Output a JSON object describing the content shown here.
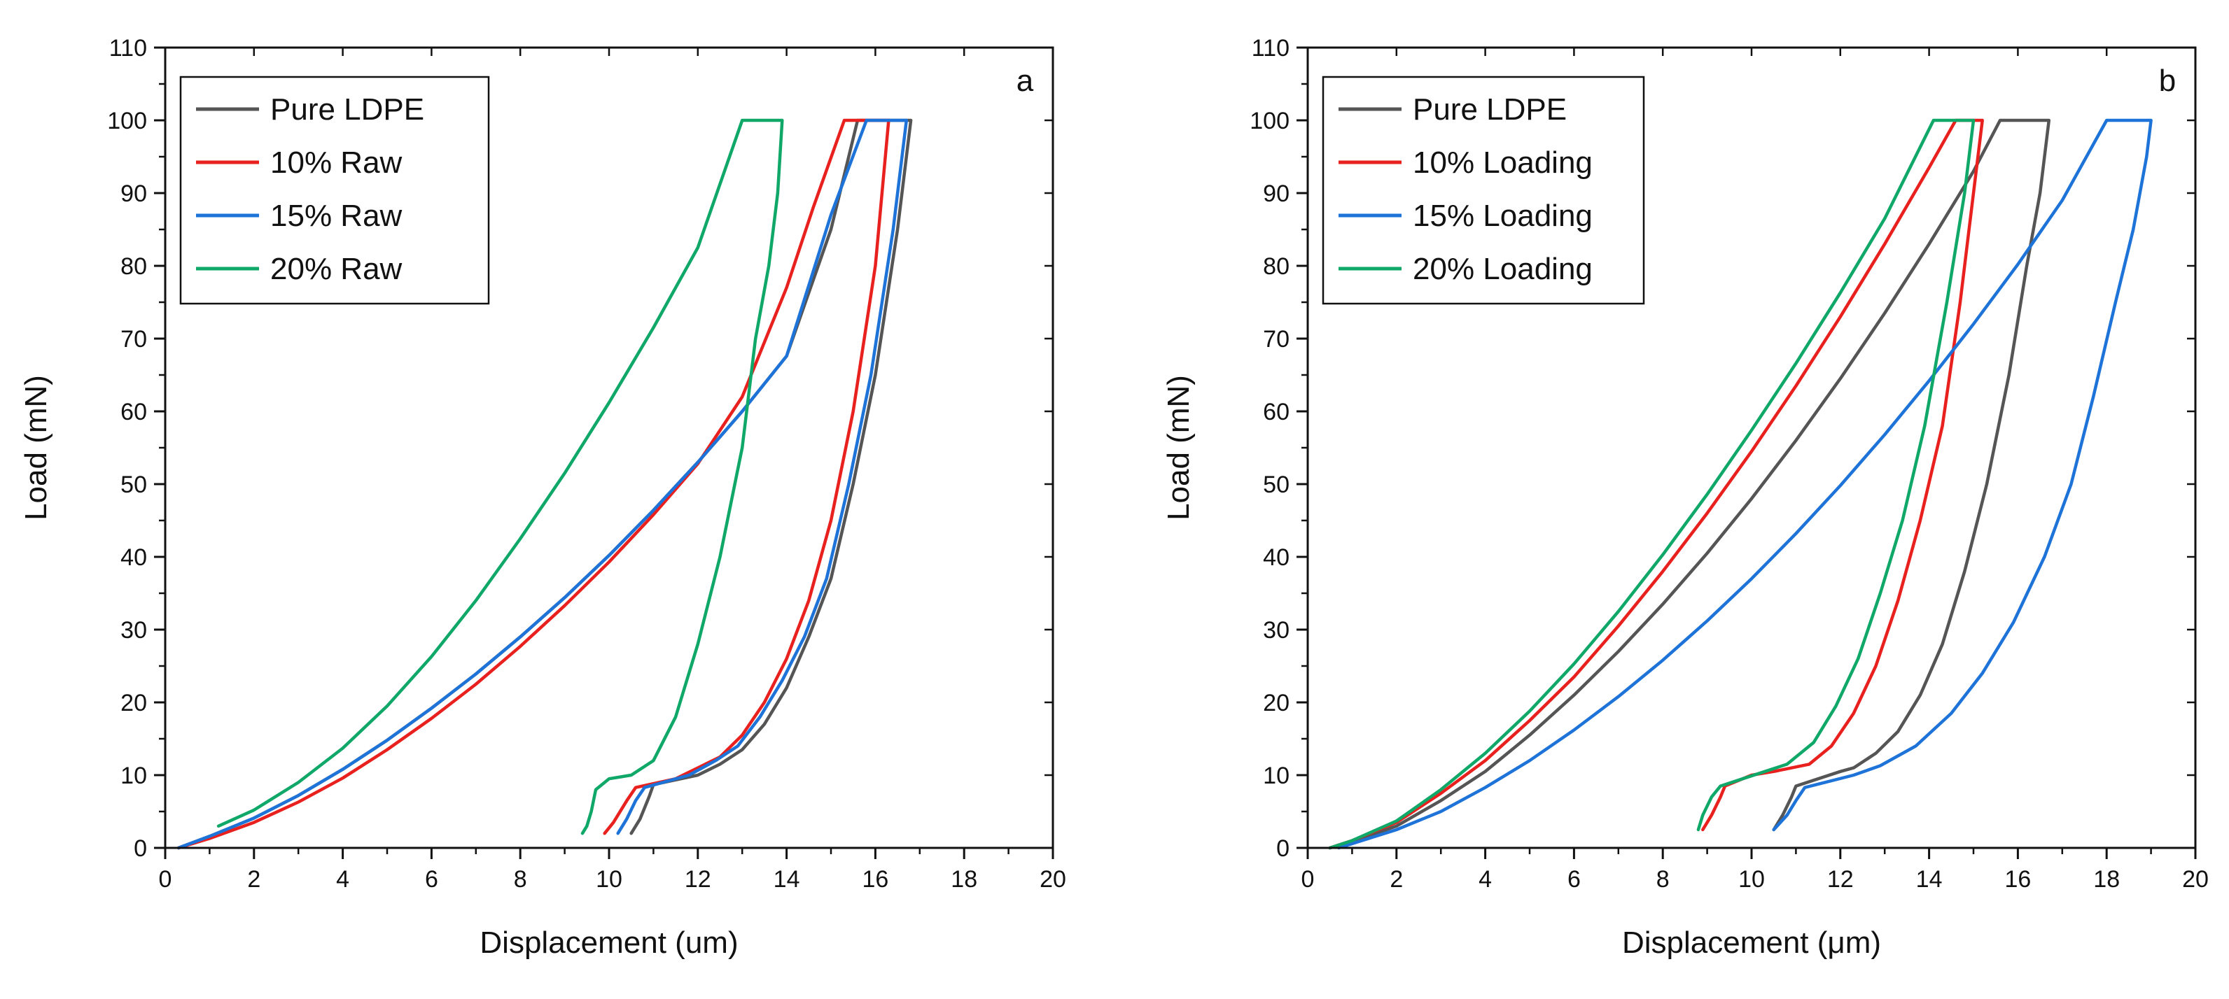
{
  "chart_data": [
    {
      "type": "line",
      "panel_letter": "a",
      "xlabel": "Displacement (um)",
      "ylabel": "Load (mN)",
      "xlim": [
        0,
        20
      ],
      "ylim": [
        0,
        110
      ],
      "xticks": [
        0,
        2,
        4,
        6,
        8,
        10,
        12,
        14,
        16,
        18,
        20
      ],
      "yticks": [
        0,
        10,
        20,
        30,
        40,
        50,
        60,
        70,
        80,
        90,
        100,
        110
      ],
      "xtick_labels": [
        "0",
        "2",
        "4",
        "6",
        "8",
        "10",
        "12",
        "14",
        "16",
        "18",
        "20"
      ],
      "ytick_labels": [
        "0",
        "10",
        "20",
        "30",
        "40",
        "50",
        "60",
        "70",
        "80",
        "90",
        "100",
        "110"
      ],
      "legend_position": "top-left",
      "series": [
        {
          "name": "Pure LDPE",
          "color": "#555555",
          "points": [
            [
              0.3,
              0
            ],
            [
              1,
              1.6
            ],
            [
              2,
              4.1
            ],
            [
              3,
              7.2
            ],
            [
              4,
              10.8
            ],
            [
              5,
              14.8
            ],
            [
              6,
              19.2
            ],
            [
              7,
              23.9
            ],
            [
              8,
              29
            ],
            [
              9,
              34.4
            ],
            [
              10,
              40.2
            ],
            [
              11,
              46.4
            ],
            [
              12,
              53
            ],
            [
              13,
              60
            ],
            [
              14,
              67.6
            ],
            [
              15,
              85
            ],
            [
              15.6,
              100
            ],
            [
              16.8,
              100
            ],
            [
              16.5,
              85
            ],
            [
              16,
              65
            ],
            [
              15.5,
              50
            ],
            [
              15,
              37
            ],
            [
              14.5,
              29
            ],
            [
              14,
              22
            ],
            [
              13.5,
              17
            ],
            [
              13,
              13.5
            ],
            [
              12.5,
              11.5
            ],
            [
              12,
              10
            ],
            [
              11,
              8.7
            ],
            [
              10.9,
              7
            ],
            [
              10.7,
              4
            ],
            [
              10.5,
              2
            ]
          ]
        },
        {
          "name": "10% Raw",
          "color": "#e8201e",
          "points": [
            [
              0.3,
              0
            ],
            [
              1,
              1.3
            ],
            [
              2,
              3.5
            ],
            [
              3,
              6.3
            ],
            [
              4,
              9.6
            ],
            [
              5,
              13.5
            ],
            [
              6,
              17.8
            ],
            [
              7,
              22.5
            ],
            [
              8,
              27.7
            ],
            [
              9,
              33.3
            ],
            [
              10,
              39.3
            ],
            [
              11,
              45.8
            ],
            [
              12,
              52.8
            ],
            [
              13,
              62
            ],
            [
              14,
              77
            ],
            [
              14.6,
              88
            ],
            [
              15.3,
              100
            ],
            [
              16.3,
              100
            ],
            [
              16,
              80
            ],
            [
              15.5,
              60
            ],
            [
              15,
              45
            ],
            [
              14.5,
              34
            ],
            [
              14,
              26
            ],
            [
              13.5,
              20
            ],
            [
              13,
              15.5
            ],
            [
              12.5,
              12.5
            ],
            [
              12,
              11
            ],
            [
              11.5,
              9.5
            ],
            [
              10.6,
              8.3
            ],
            [
              10.4,
              6.5
            ],
            [
              10.1,
              3.5
            ],
            [
              9.9,
              2
            ]
          ]
        },
        {
          "name": "15% Raw",
          "color": "#1e73d8",
          "points": [
            [
              0.3,
              0
            ],
            [
              1,
              1.6
            ],
            [
              2,
              4.1
            ],
            [
              3,
              7.2
            ],
            [
              4,
              10.8
            ],
            [
              5,
              14.8
            ],
            [
              6,
              19.2
            ],
            [
              7,
              23.9
            ],
            [
              8,
              29
            ],
            [
              9,
              34.4
            ],
            [
              10,
              40.2
            ],
            [
              11,
              46.4
            ],
            [
              12,
              53
            ],
            [
              13,
              60
            ],
            [
              14,
              67.6
            ],
            [
              15,
              87
            ],
            [
              15.8,
              100
            ],
            [
              16.7,
              100
            ],
            [
              16.4,
              85
            ],
            [
              15.9,
              65
            ],
            [
              15.4,
              50
            ],
            [
              14.9,
              37
            ],
            [
              14.4,
              29
            ],
            [
              13.9,
              23
            ],
            [
              13.4,
              18
            ],
            [
              12.9,
              14
            ],
            [
              12.4,
              12
            ],
            [
              11.8,
              10
            ],
            [
              10.8,
              8.3
            ],
            [
              10.6,
              6.5
            ],
            [
              10.4,
              4
            ],
            [
              10.2,
              2
            ]
          ]
        },
        {
          "name": "20% Raw",
          "color": "#10a868",
          "points": [
            [
              1.2,
              3
            ],
            [
              2,
              5.2
            ],
            [
              3,
              9
            ],
            [
              4,
              13.7
            ],
            [
              5,
              19.5
            ],
            [
              6,
              26.3
            ],
            [
              7,
              34
            ],
            [
              8,
              42.5
            ],
            [
              9,
              51.5
            ],
            [
              10,
              61.2
            ],
            [
              11,
              71.5
            ],
            [
              12,
              82.5
            ],
            [
              13,
              100
            ],
            [
              13.9,
              100
            ],
            [
              13.8,
              90
            ],
            [
              13.6,
              80
            ],
            [
              13.3,
              70
            ],
            [
              13,
              55
            ],
            [
              12.5,
              40
            ],
            [
              12,
              28
            ],
            [
              11.5,
              18
            ],
            [
              11,
              12
            ],
            [
              10.5,
              10
            ],
            [
              10,
              9.5
            ],
            [
              9.7,
              8
            ],
            [
              9.6,
              5
            ],
            [
              9.5,
              3
            ],
            [
              9.4,
              2
            ]
          ]
        }
      ]
    },
    {
      "type": "line",
      "panel_letter": "b",
      "xlabel": "Displacement (μm)",
      "ylabel": "Load (mN)",
      "xlim": [
        0,
        20
      ],
      "ylim": [
        0,
        110
      ],
      "xticks": [
        0,
        2,
        4,
        6,
        8,
        10,
        12,
        14,
        16,
        18,
        20
      ],
      "yticks": [
        0,
        10,
        20,
        30,
        40,
        50,
        60,
        70,
        80,
        90,
        100,
        110
      ],
      "xtick_labels": [
        "0",
        "2",
        "4",
        "6",
        "8",
        "10",
        "12",
        "14",
        "16",
        "18",
        "20"
      ],
      "ytick_labels": [
        "0",
        "10",
        "20",
        "30",
        "40",
        "50",
        "60",
        "70",
        "80",
        "90",
        "100",
        "110"
      ],
      "legend_position": "top-left",
      "series": [
        {
          "name": "Pure LDPE",
          "color": "#555555",
          "points": [
            [
              0.5,
              0
            ],
            [
              1,
              0.8
            ],
            [
              2,
              3
            ],
            [
              3,
              6.5
            ],
            [
              4,
              10.5
            ],
            [
              5,
              15.5
            ],
            [
              6,
              21
            ],
            [
              7,
              27
            ],
            [
              8,
              33.5
            ],
            [
              9,
              40.5
            ],
            [
              10,
              48
            ],
            [
              11,
              56
            ],
            [
              12,
              64.5
            ],
            [
              13,
              73.5
            ],
            [
              14,
              83
            ],
            [
              15,
              93
            ],
            [
              15.6,
              100
            ],
            [
              16.7,
              100
            ],
            [
              16.5,
              90
            ],
            [
              16.2,
              80
            ],
            [
              15.8,
              65
            ],
            [
              15.3,
              50
            ],
            [
              14.8,
              38
            ],
            [
              14.3,
              28
            ],
            [
              13.8,
              21
            ],
            [
              13.3,
              16
            ],
            [
              12.8,
              13
            ],
            [
              12.3,
              11
            ],
            [
              12,
              10.5
            ],
            [
              11,
              8.5
            ],
            [
              10.9,
              7
            ],
            [
              10.7,
              4.5
            ],
            [
              10.5,
              2.5
            ]
          ]
        },
        {
          "name": "10% Loading",
          "color": "#e8201e",
          "points": [
            [
              0.5,
              0
            ],
            [
              1,
              1
            ],
            [
              2,
              3.5
            ],
            [
              3,
              7.5
            ],
            [
              4,
              12
            ],
            [
              5,
              17.5
            ],
            [
              6,
              23.5
            ],
            [
              7,
              30.5
            ],
            [
              8,
              38
            ],
            [
              9,
              46
            ],
            [
              10,
              54.5
            ],
            [
              11,
              63.5
            ],
            [
              12,
              73
            ],
            [
              13,
              83
            ],
            [
              14,
              93.5
            ],
            [
              14.6,
              100
            ],
            [
              15.2,
              100
            ],
            [
              15,
              90
            ],
            [
              14.7,
              75
            ],
            [
              14.3,
              58
            ],
            [
              13.8,
              45
            ],
            [
              13.3,
              34
            ],
            [
              12.8,
              25
            ],
            [
              12.3,
              18.5
            ],
            [
              11.8,
              14
            ],
            [
              11.3,
              11.5
            ],
            [
              10.5,
              10.5
            ],
            [
              10,
              10
            ],
            [
              9.4,
              8.5
            ],
            [
              9.3,
              7
            ],
            [
              9.1,
              4.5
            ],
            [
              8.9,
              2.5
            ]
          ]
        },
        {
          "name": "15% Loading",
          "color": "#1e73d8",
          "points": [
            [
              0.7,
              0
            ],
            [
              2,
              2.5
            ],
            [
              3,
              5
            ],
            [
              4,
              8.3
            ],
            [
              5,
              12
            ],
            [
              6,
              16.2
            ],
            [
              7,
              20.8
            ],
            [
              8,
              25.8
            ],
            [
              9,
              31.2
            ],
            [
              10,
              37
            ],
            [
              11,
              43.2
            ],
            [
              12,
              49.8
            ],
            [
              13,
              56.8
            ],
            [
              14,
              64.2
            ],
            [
              15,
              72
            ],
            [
              16,
              80.2
            ],
            [
              17,
              89
            ],
            [
              18,
              100
            ],
            [
              19,
              100
            ],
            [
              18.9,
              95
            ],
            [
              18.6,
              85
            ],
            [
              18.2,
              75
            ],
            [
              17.7,
              62
            ],
            [
              17.2,
              50
            ],
            [
              16.6,
              40
            ],
            [
              15.9,
              31
            ],
            [
              15.2,
              24
            ],
            [
              14.5,
              18.5
            ],
            [
              13.7,
              14
            ],
            [
              12.9,
              11.3
            ],
            [
              12.3,
              10
            ],
            [
              11.2,
              8.3
            ],
            [
              11,
              6.5
            ],
            [
              10.8,
              4.5
            ],
            [
              10.5,
              2.5
            ]
          ]
        },
        {
          "name": "20% Loading",
          "color": "#10a868",
          "points": [
            [
              0.5,
              0
            ],
            [
              1,
              1
            ],
            [
              2,
              3.7
            ],
            [
              3,
              8
            ],
            [
              4,
              13
            ],
            [
              5,
              18.8
            ],
            [
              6,
              25.3
            ],
            [
              7,
              32.5
            ],
            [
              8,
              40.3
            ],
            [
              9,
              48.6
            ],
            [
              10,
              57.4
            ],
            [
              11,
              66.6
            ],
            [
              12,
              76.3
            ],
            [
              13,
              86.5
            ],
            [
              14.1,
              100
            ],
            [
              15,
              100
            ],
            [
              14.8,
              90
            ],
            [
              14.4,
              75
            ],
            [
              13.9,
              58
            ],
            [
              13.4,
              45
            ],
            [
              12.9,
              35
            ],
            [
              12.4,
              26
            ],
            [
              11.9,
              19.5
            ],
            [
              11.4,
              14.5
            ],
            [
              10.8,
              11.5
            ],
            [
              10.3,
              10.5
            ],
            [
              9.8,
              9.5
            ],
            [
              9.3,
              8.5
            ],
            [
              9.1,
              7
            ],
            [
              8.9,
              4.5
            ],
            [
              8.8,
              2.5
            ]
          ]
        }
      ]
    }
  ]
}
